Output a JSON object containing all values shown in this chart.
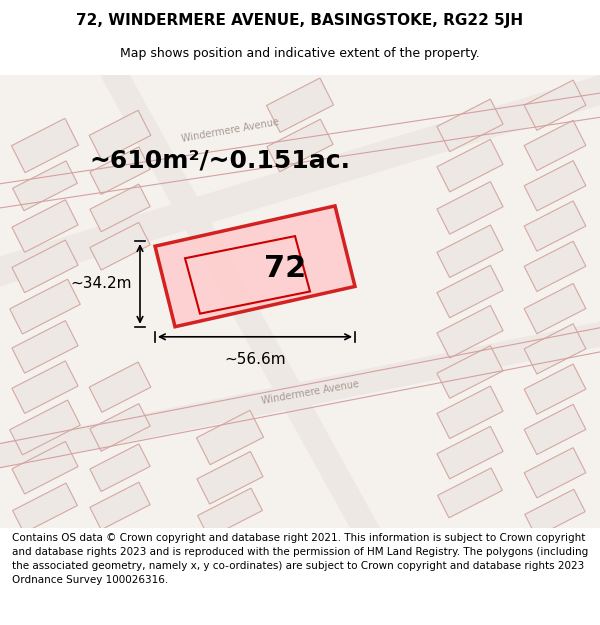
{
  "title_line1": "72, WINDERMERE AVENUE, BASINGSTOKE, RG22 5JH",
  "title_line2": "Map shows position and indicative extent of the property.",
  "footer_text": "Contains OS data © Crown copyright and database right 2021. This information is subject to Crown copyright and database rights 2023 and is reproduced with the permission of HM Land Registry. The polygons (including the associated geometry, namely x, y co-ordinates) are subject to Crown copyright and database rights 2023 Ordnance Survey 100026316.",
  "area_label": "~610m²/~0.151ac.",
  "width_label": "~56.6m",
  "height_label": "~34.2m",
  "property_number": "72",
  "bg_color": "#f0ece8",
  "map_bg_color": "#f5f2ee",
  "road_color": "#e8e0d8",
  "building_outline_color": "#d4b8b0",
  "highlight_color": "#cc0000",
  "highlight_fill": "#ffcccc",
  "road_line_color": "#c8b8b0",
  "title_fontsize": 11,
  "subtitle_fontsize": 9,
  "footer_fontsize": 7.5,
  "area_fontsize": 18,
  "label_fontsize": 11,
  "number_fontsize": 22
}
